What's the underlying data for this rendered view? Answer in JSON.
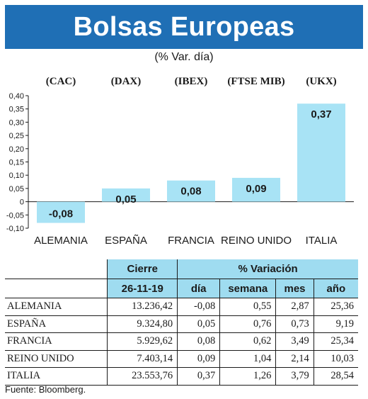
{
  "header": {
    "title": "Bolsas Europeas",
    "subtitle": "(% Var. día)",
    "brand_color": "#1f6fb5"
  },
  "chart_data": {
    "type": "bar",
    "categories": [
      "ALEMANIA",
      "ESPAÑA",
      "FRANCIA",
      "REINO UNIDO",
      "ITALIA"
    ],
    "index_labels": [
      "(CAC)",
      "(DAX)",
      "(IBEX)",
      "(FTSE MIB)",
      "(UKX)"
    ],
    "values": [
      -0.08,
      0.05,
      0.08,
      0.09,
      0.37
    ],
    "value_labels": [
      "-0,08",
      "0,05",
      "0,08",
      "0,09",
      "0,37"
    ],
    "ylim": [
      -0.1,
      0.4
    ],
    "yticks": [
      "0,40",
      "0,35",
      "0,30",
      "0,25",
      "0,20",
      "0,15",
      "0,10",
      "0,05",
      "0",
      "-0,05",
      "-0,10"
    ],
    "bar_color": "#a8e3f5",
    "grid": false
  },
  "table": {
    "group_headers": [
      "Cierre",
      "% Variación"
    ],
    "columns": [
      "26-11-19",
      "día",
      "semana",
      "mes",
      "año"
    ],
    "rows": [
      {
        "country": "ALEMANIA",
        "cierre": "13.236,42",
        "dia": "-0,08",
        "semana": "0,55",
        "mes": "2,87",
        "ano": "25,36"
      },
      {
        "country": "ESPAÑA",
        "cierre": "9.324,80",
        "dia": "0,05",
        "semana": "0,76",
        "mes": "0,73",
        "ano": "9,19"
      },
      {
        "country": "FRANCIA",
        "cierre": "5.929,62",
        "dia": "0,08",
        "semana": "0,62",
        "mes": "3,49",
        "ano": "25,34"
      },
      {
        "country": "REINO UNIDO",
        "cierre": "7.403,14",
        "dia": "0,09",
        "semana": "1,04",
        "mes": "2,14",
        "ano": "10,03"
      },
      {
        "country": "ITALIA",
        "cierre": "23.553,76",
        "dia": "0,37",
        "semana": "1,26",
        "mes": "3,79",
        "ano": "28,54"
      }
    ],
    "header_color": "#9fdcf0"
  },
  "footer": {
    "source": "Fuente: Bloomberg."
  }
}
